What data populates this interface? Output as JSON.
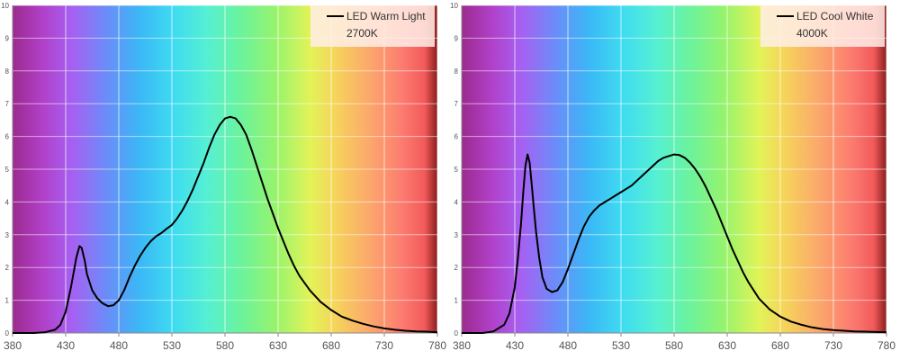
{
  "chart_data": [
    {
      "type": "line",
      "title": "",
      "xlabel": "",
      "ylabel": "",
      "xlim": [
        380,
        780
      ],
      "ylim": [
        0,
        10
      ],
      "x_ticks": [
        380,
        430,
        480,
        530,
        580,
        630,
        680,
        730,
        780
      ],
      "y_ticks": [
        0,
        1,
        2,
        3,
        4,
        5,
        6,
        7,
        8,
        9,
        10
      ],
      "grid": true,
      "legend": {
        "placement": "top-right",
        "lines": [
          "LED Warm Light",
          "2700K"
        ]
      },
      "series": [
        {
          "name": "LED Warm Light",
          "color": "#000000",
          "x": [
            380,
            390,
            400,
            410,
            420,
            425,
            430,
            435,
            440,
            443,
            445,
            448,
            450,
            455,
            460,
            465,
            470,
            475,
            480,
            485,
            490,
            495,
            500,
            505,
            510,
            515,
            520,
            525,
            530,
            535,
            540,
            545,
            550,
            555,
            560,
            565,
            570,
            575,
            580,
            585,
            590,
            595,
            600,
            605,
            610,
            615,
            620,
            625,
            630,
            635,
            640,
            645,
            650,
            660,
            670,
            680,
            690,
            700,
            710,
            720,
            730,
            740,
            750,
            760,
            770,
            780
          ],
          "y": [
            0,
            0,
            0,
            0.02,
            0.1,
            0.25,
            0.65,
            1.4,
            2.3,
            2.65,
            2.6,
            2.2,
            1.8,
            1.3,
            1.05,
            0.9,
            0.82,
            0.85,
            1.0,
            1.3,
            1.7,
            2.05,
            2.35,
            2.6,
            2.8,
            2.95,
            3.05,
            3.18,
            3.3,
            3.5,
            3.75,
            4.05,
            4.4,
            4.8,
            5.2,
            5.65,
            6.05,
            6.35,
            6.55,
            6.6,
            6.55,
            6.35,
            6.05,
            5.6,
            5.1,
            4.6,
            4.1,
            3.65,
            3.2,
            2.8,
            2.4,
            2.05,
            1.75,
            1.3,
            0.95,
            0.7,
            0.5,
            0.38,
            0.28,
            0.2,
            0.14,
            0.1,
            0.07,
            0.05,
            0.04,
            0.02
          ]
        }
      ]
    },
    {
      "type": "line",
      "title": "",
      "xlabel": "",
      "ylabel": "",
      "xlim": [
        380,
        780
      ],
      "ylim": [
        0,
        10
      ],
      "x_ticks": [
        380,
        430,
        480,
        530,
        580,
        630,
        680,
        730,
        780
      ],
      "y_ticks": [
        0,
        1,
        2,
        3,
        4,
        5,
        6,
        7,
        8,
        9,
        10
      ],
      "grid": true,
      "legend": {
        "placement": "top-right",
        "lines": [
          "LED Cool White",
          "4000K"
        ]
      },
      "series": [
        {
          "name": "LED Cool White",
          "color": "#000000",
          "x": [
            380,
            390,
            400,
            410,
            420,
            425,
            430,
            433,
            436,
            438,
            440,
            442,
            444,
            446,
            448,
            450,
            453,
            456,
            460,
            465,
            470,
            475,
            480,
            485,
            490,
            495,
            500,
            505,
            510,
            515,
            520,
            525,
            530,
            535,
            540,
            545,
            550,
            555,
            560,
            565,
            570,
            575,
            580,
            585,
            590,
            595,
            600,
            605,
            610,
            615,
            620,
            625,
            630,
            635,
            640,
            645,
            650,
            660,
            670,
            680,
            690,
            700,
            710,
            720,
            730,
            740,
            750,
            760,
            770,
            780
          ],
          "y": [
            0,
            0,
            0,
            0.05,
            0.25,
            0.6,
            1.4,
            2.3,
            3.4,
            4.3,
            5.1,
            5.45,
            5.2,
            4.5,
            3.8,
            3.1,
            2.3,
            1.7,
            1.35,
            1.25,
            1.3,
            1.55,
            1.95,
            2.4,
            2.85,
            3.25,
            3.55,
            3.75,
            3.9,
            4.0,
            4.1,
            4.2,
            4.3,
            4.4,
            4.5,
            4.65,
            4.8,
            4.95,
            5.1,
            5.25,
            5.35,
            5.4,
            5.45,
            5.43,
            5.35,
            5.2,
            5.0,
            4.75,
            4.45,
            4.1,
            3.75,
            3.35,
            2.95,
            2.55,
            2.2,
            1.85,
            1.55,
            1.05,
            0.72,
            0.5,
            0.35,
            0.25,
            0.17,
            0.12,
            0.09,
            0.07,
            0.05,
            0.04,
            0.03,
            0.02
          ]
        }
      ]
    }
  ]
}
